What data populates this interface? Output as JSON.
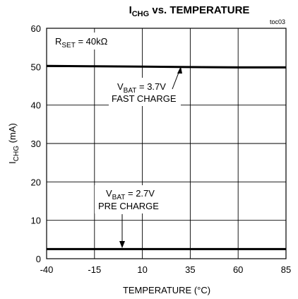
{
  "chart_data": {
    "type": "line",
    "title": {
      "main": "I",
      "sub": "CHG",
      "rest": " vs. TEMPERATURE"
    },
    "tag": "toc03",
    "xlabel": "TEMPERATURE (°C)",
    "ylabel": {
      "main": "I",
      "sub": "CHG",
      "rest": " (mA)"
    },
    "xlim": [
      -40,
      85
    ],
    "ylim": [
      0,
      60
    ],
    "xticks": [
      -40,
      -15,
      10,
      35,
      60,
      85
    ],
    "yticks": [
      0,
      10,
      20,
      30,
      40,
      50,
      60
    ],
    "grid": true,
    "series": [
      {
        "x": [
          -40,
          -15,
          10,
          35,
          60,
          85
        ],
        "y": [
          50.2,
          50.1,
          50.0,
          49.9,
          49.8,
          49.8
        ]
      },
      {
        "x": [
          -40,
          -15,
          10,
          35,
          60,
          85
        ],
        "y": [
          2.5,
          2.5,
          2.5,
          2.5,
          2.5,
          2.5
        ]
      }
    ],
    "annotations": {
      "rset": {
        "main": "R",
        "sub": "SET",
        "rest": " = 40kΩ"
      },
      "fast": {
        "main": "V",
        "sub": "BAT",
        "rest": " = 3.7V",
        "line2": "FAST CHARGE"
      },
      "pre": {
        "main": "V",
        "sub": "BAT",
        "rest": " = 2.7V",
        "line2": "PRE CHARGE"
      }
    }
  }
}
